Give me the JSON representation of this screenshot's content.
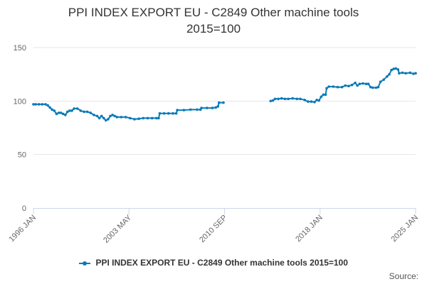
{
  "chart_data": {
    "type": "line",
    "title_lines": [
      "PPI INDEX EXPORT EU - C2849 Other machine tools",
      "2015=100"
    ],
    "x_tick_labels": [
      "1996 JAN",
      "2003 MAY",
      "2010 SEP",
      "2018 JAN",
      "2025 JAN"
    ],
    "y_tick_labels": [
      "0",
      "50",
      "100",
      "150"
    ],
    "ylim": [
      0,
      150
    ],
    "grid": true,
    "legend_position": "bottom",
    "source_label": "Source:",
    "colors": {
      "series": "#0a7ab8",
      "grid": "#e6e6e6",
      "axis": "#ccd6eb"
    },
    "series": [
      {
        "name": "PPI INDEX EXPORT EU - C2849 Other machine tools 2015=100",
        "points": [
          [
            "1996-01",
            97
          ],
          [
            "1996-03",
            97
          ],
          [
            "1996-06",
            97
          ],
          [
            "1996-09",
            97
          ],
          [
            "1996-12",
            97
          ],
          [
            "1997-02",
            96
          ],
          [
            "1997-04",
            94
          ],
          [
            "1997-06",
            92
          ],
          [
            "1997-08",
            91
          ],
          [
            "1997-10",
            88
          ],
          [
            "1997-12",
            89
          ],
          [
            "1998-02",
            89
          ],
          [
            "1998-04",
            88
          ],
          [
            "1998-06",
            87
          ],
          [
            "1998-08",
            90
          ],
          [
            "1998-10",
            91
          ],
          [
            "1998-12",
            91
          ],
          [
            "1999-02",
            93
          ],
          [
            "1999-05",
            93
          ],
          [
            "1999-08",
            91
          ],
          [
            "1999-11",
            90
          ],
          [
            "2000-02",
            90
          ],
          [
            "2000-05",
            89
          ],
          [
            "2000-08",
            87
          ],
          [
            "2000-11",
            86
          ],
          [
            "2001-01",
            84
          ],
          [
            "2001-03",
            86
          ],
          [
            "2001-05",
            84
          ],
          [
            "2001-07",
            82
          ],
          [
            "2001-09",
            83
          ],
          [
            "2001-11",
            86
          ],
          [
            "2002-01",
            87
          ],
          [
            "2002-03",
            86
          ],
          [
            "2002-05",
            85
          ],
          [
            "2002-09",
            85
          ],
          [
            "2003-01",
            85
          ],
          [
            "2003-05",
            84
          ],
          [
            "2003-09",
            83
          ],
          [
            "2004-01",
            83.5
          ],
          [
            "2004-05",
            84
          ],
          [
            "2004-09",
            84
          ],
          [
            "2005-01",
            84
          ],
          [
            "2005-05",
            84
          ],
          [
            "2005-07",
            84
          ],
          [
            "2005-08",
            88.5
          ],
          [
            "2005-12",
            88.5
          ],
          [
            "2006-04",
            88.5
          ],
          [
            "2006-08",
            88.5
          ],
          [
            "2006-11",
            88.5
          ],
          [
            "2006-12",
            91.5
          ],
          [
            "2007-06",
            91.5
          ],
          [
            "2007-12",
            92
          ],
          [
            "2008-06",
            92
          ],
          [
            "2008-09",
            92
          ],
          [
            "2008-10",
            93.5
          ],
          [
            "2009-03",
            93.5
          ],
          [
            "2009-08",
            93.5
          ],
          [
            "2009-11",
            94
          ],
          [
            "2010-01",
            95
          ],
          [
            "2010-02",
            98.5
          ],
          [
            "2010-06",
            98.5
          ],
          [
            "2010-07",
            null
          ],
          [
            "2014-01",
            100
          ],
          [
            "2014-03",
            100.5
          ],
          [
            "2014-05",
            102
          ],
          [
            "2014-08",
            102
          ],
          [
            "2014-11",
            102.5
          ],
          [
            "2015-02",
            102
          ],
          [
            "2015-05",
            102
          ],
          [
            "2015-09",
            102.5
          ],
          [
            "2016-01",
            102
          ],
          [
            "2016-04",
            102
          ],
          [
            "2016-08",
            101
          ],
          [
            "2016-11",
            99.5
          ],
          [
            "2017-02",
            99.5
          ],
          [
            "2017-05",
            99
          ],
          [
            "2017-07",
            101
          ],
          [
            "2017-09",
            100.5
          ],
          [
            "2017-11",
            104
          ],
          [
            "2018-01",
            106
          ],
          [
            "2018-03",
            106
          ],
          [
            "2018-04",
            112
          ],
          [
            "2018-06",
            113.5
          ],
          [
            "2018-10",
            113.5
          ],
          [
            "2019-02",
            113
          ],
          [
            "2019-06",
            113
          ],
          [
            "2019-09",
            114.5
          ],
          [
            "2019-12",
            114
          ],
          [
            "2020-03",
            115
          ],
          [
            "2020-06",
            117
          ],
          [
            "2020-08",
            114.5
          ],
          [
            "2020-10",
            116
          ],
          [
            "2021-01",
            116.5
          ],
          [
            "2021-04",
            116
          ],
          [
            "2021-06",
            116
          ],
          [
            "2021-08",
            113
          ],
          [
            "2021-10",
            112.5
          ],
          [
            "2022-01",
            112.5
          ],
          [
            "2022-03",
            113
          ],
          [
            "2022-05",
            118
          ],
          [
            "2022-08",
            120
          ],
          [
            "2022-11",
            123
          ],
          [
            "2023-01",
            125
          ],
          [
            "2023-03",
            129
          ],
          [
            "2023-05",
            130
          ],
          [
            "2023-07",
            130.5
          ],
          [
            "2023-09",
            129.5
          ],
          [
            "2023-10",
            126
          ],
          [
            "2024-01",
            126.5
          ],
          [
            "2024-04",
            126
          ],
          [
            "2024-08",
            126.5
          ],
          [
            "2024-11",
            125.5
          ],
          [
            "2025-01",
            126
          ]
        ]
      }
    ]
  }
}
